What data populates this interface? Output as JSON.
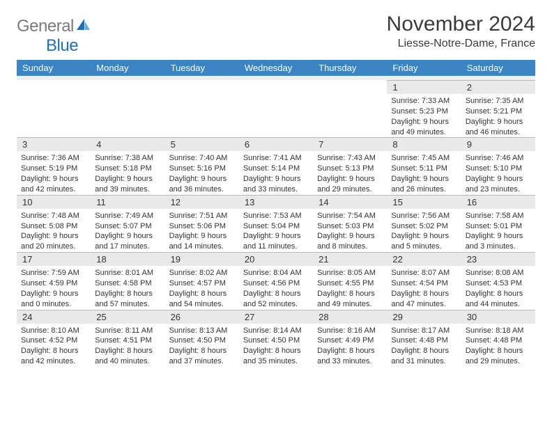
{
  "logo": {
    "text1": "General",
    "text2": "Blue"
  },
  "title": "November 2024",
  "location": "Liesse-Notre-Dame, France",
  "colors": {
    "header_bg": "#3b84c4",
    "header_fg": "#ffffff",
    "daynum_bg": "#e9e9e9",
    "border": "#b8b8b8",
    "text": "#333333",
    "logo_gray": "#7a7a7a",
    "logo_blue": "#1e6fb8"
  },
  "day_names": [
    "Sunday",
    "Monday",
    "Tuesday",
    "Wednesday",
    "Thursday",
    "Friday",
    "Saturday"
  ],
  "weeks": [
    [
      null,
      null,
      null,
      null,
      null,
      {
        "n": "1",
        "sr": "7:33 AM",
        "ss": "5:23 PM",
        "d1": "9 hours",
        "d2": "and 49 minutes."
      },
      {
        "n": "2",
        "sr": "7:35 AM",
        "ss": "5:21 PM",
        "d1": "9 hours",
        "d2": "and 46 minutes."
      }
    ],
    [
      {
        "n": "3",
        "sr": "7:36 AM",
        "ss": "5:19 PM",
        "d1": "9 hours",
        "d2": "and 42 minutes."
      },
      {
        "n": "4",
        "sr": "7:38 AM",
        "ss": "5:18 PM",
        "d1": "9 hours",
        "d2": "and 39 minutes."
      },
      {
        "n": "5",
        "sr": "7:40 AM",
        "ss": "5:16 PM",
        "d1": "9 hours",
        "d2": "and 36 minutes."
      },
      {
        "n": "6",
        "sr": "7:41 AM",
        "ss": "5:14 PM",
        "d1": "9 hours",
        "d2": "and 33 minutes."
      },
      {
        "n": "7",
        "sr": "7:43 AM",
        "ss": "5:13 PM",
        "d1": "9 hours",
        "d2": "and 29 minutes."
      },
      {
        "n": "8",
        "sr": "7:45 AM",
        "ss": "5:11 PM",
        "d1": "9 hours",
        "d2": "and 26 minutes."
      },
      {
        "n": "9",
        "sr": "7:46 AM",
        "ss": "5:10 PM",
        "d1": "9 hours",
        "d2": "and 23 minutes."
      }
    ],
    [
      {
        "n": "10",
        "sr": "7:48 AM",
        "ss": "5:08 PM",
        "d1": "9 hours",
        "d2": "and 20 minutes."
      },
      {
        "n": "11",
        "sr": "7:49 AM",
        "ss": "5:07 PM",
        "d1": "9 hours",
        "d2": "and 17 minutes."
      },
      {
        "n": "12",
        "sr": "7:51 AM",
        "ss": "5:06 PM",
        "d1": "9 hours",
        "d2": "and 14 minutes."
      },
      {
        "n": "13",
        "sr": "7:53 AM",
        "ss": "5:04 PM",
        "d1": "9 hours",
        "d2": "and 11 minutes."
      },
      {
        "n": "14",
        "sr": "7:54 AM",
        "ss": "5:03 PM",
        "d1": "9 hours",
        "d2": "and 8 minutes."
      },
      {
        "n": "15",
        "sr": "7:56 AM",
        "ss": "5:02 PM",
        "d1": "9 hours",
        "d2": "and 5 minutes."
      },
      {
        "n": "16",
        "sr": "7:58 AM",
        "ss": "5:01 PM",
        "d1": "9 hours",
        "d2": "and 3 minutes."
      }
    ],
    [
      {
        "n": "17",
        "sr": "7:59 AM",
        "ss": "4:59 PM",
        "d1": "9 hours",
        "d2": "and 0 minutes."
      },
      {
        "n": "18",
        "sr": "8:01 AM",
        "ss": "4:58 PM",
        "d1": "8 hours",
        "d2": "and 57 minutes."
      },
      {
        "n": "19",
        "sr": "8:02 AM",
        "ss": "4:57 PM",
        "d1": "8 hours",
        "d2": "and 54 minutes."
      },
      {
        "n": "20",
        "sr": "8:04 AM",
        "ss": "4:56 PM",
        "d1": "8 hours",
        "d2": "and 52 minutes."
      },
      {
        "n": "21",
        "sr": "8:05 AM",
        "ss": "4:55 PM",
        "d1": "8 hours",
        "d2": "and 49 minutes."
      },
      {
        "n": "22",
        "sr": "8:07 AM",
        "ss": "4:54 PM",
        "d1": "8 hours",
        "d2": "and 47 minutes."
      },
      {
        "n": "23",
        "sr": "8:08 AM",
        "ss": "4:53 PM",
        "d1": "8 hours",
        "d2": "and 44 minutes."
      }
    ],
    [
      {
        "n": "24",
        "sr": "8:10 AM",
        "ss": "4:52 PM",
        "d1": "8 hours",
        "d2": "and 42 minutes."
      },
      {
        "n": "25",
        "sr": "8:11 AM",
        "ss": "4:51 PM",
        "d1": "8 hours",
        "d2": "and 40 minutes."
      },
      {
        "n": "26",
        "sr": "8:13 AM",
        "ss": "4:50 PM",
        "d1": "8 hours",
        "d2": "and 37 minutes."
      },
      {
        "n": "27",
        "sr": "8:14 AM",
        "ss": "4:50 PM",
        "d1": "8 hours",
        "d2": "and 35 minutes."
      },
      {
        "n": "28",
        "sr": "8:16 AM",
        "ss": "4:49 PM",
        "d1": "8 hours",
        "d2": "and 33 minutes."
      },
      {
        "n": "29",
        "sr": "8:17 AM",
        "ss": "4:48 PM",
        "d1": "8 hours",
        "d2": "and 31 minutes."
      },
      {
        "n": "30",
        "sr": "8:18 AM",
        "ss": "4:48 PM",
        "d1": "8 hours",
        "d2": "and 29 minutes."
      }
    ]
  ],
  "labels": {
    "sunrise": "Sunrise:",
    "sunset": "Sunset:",
    "daylight": "Daylight:"
  }
}
